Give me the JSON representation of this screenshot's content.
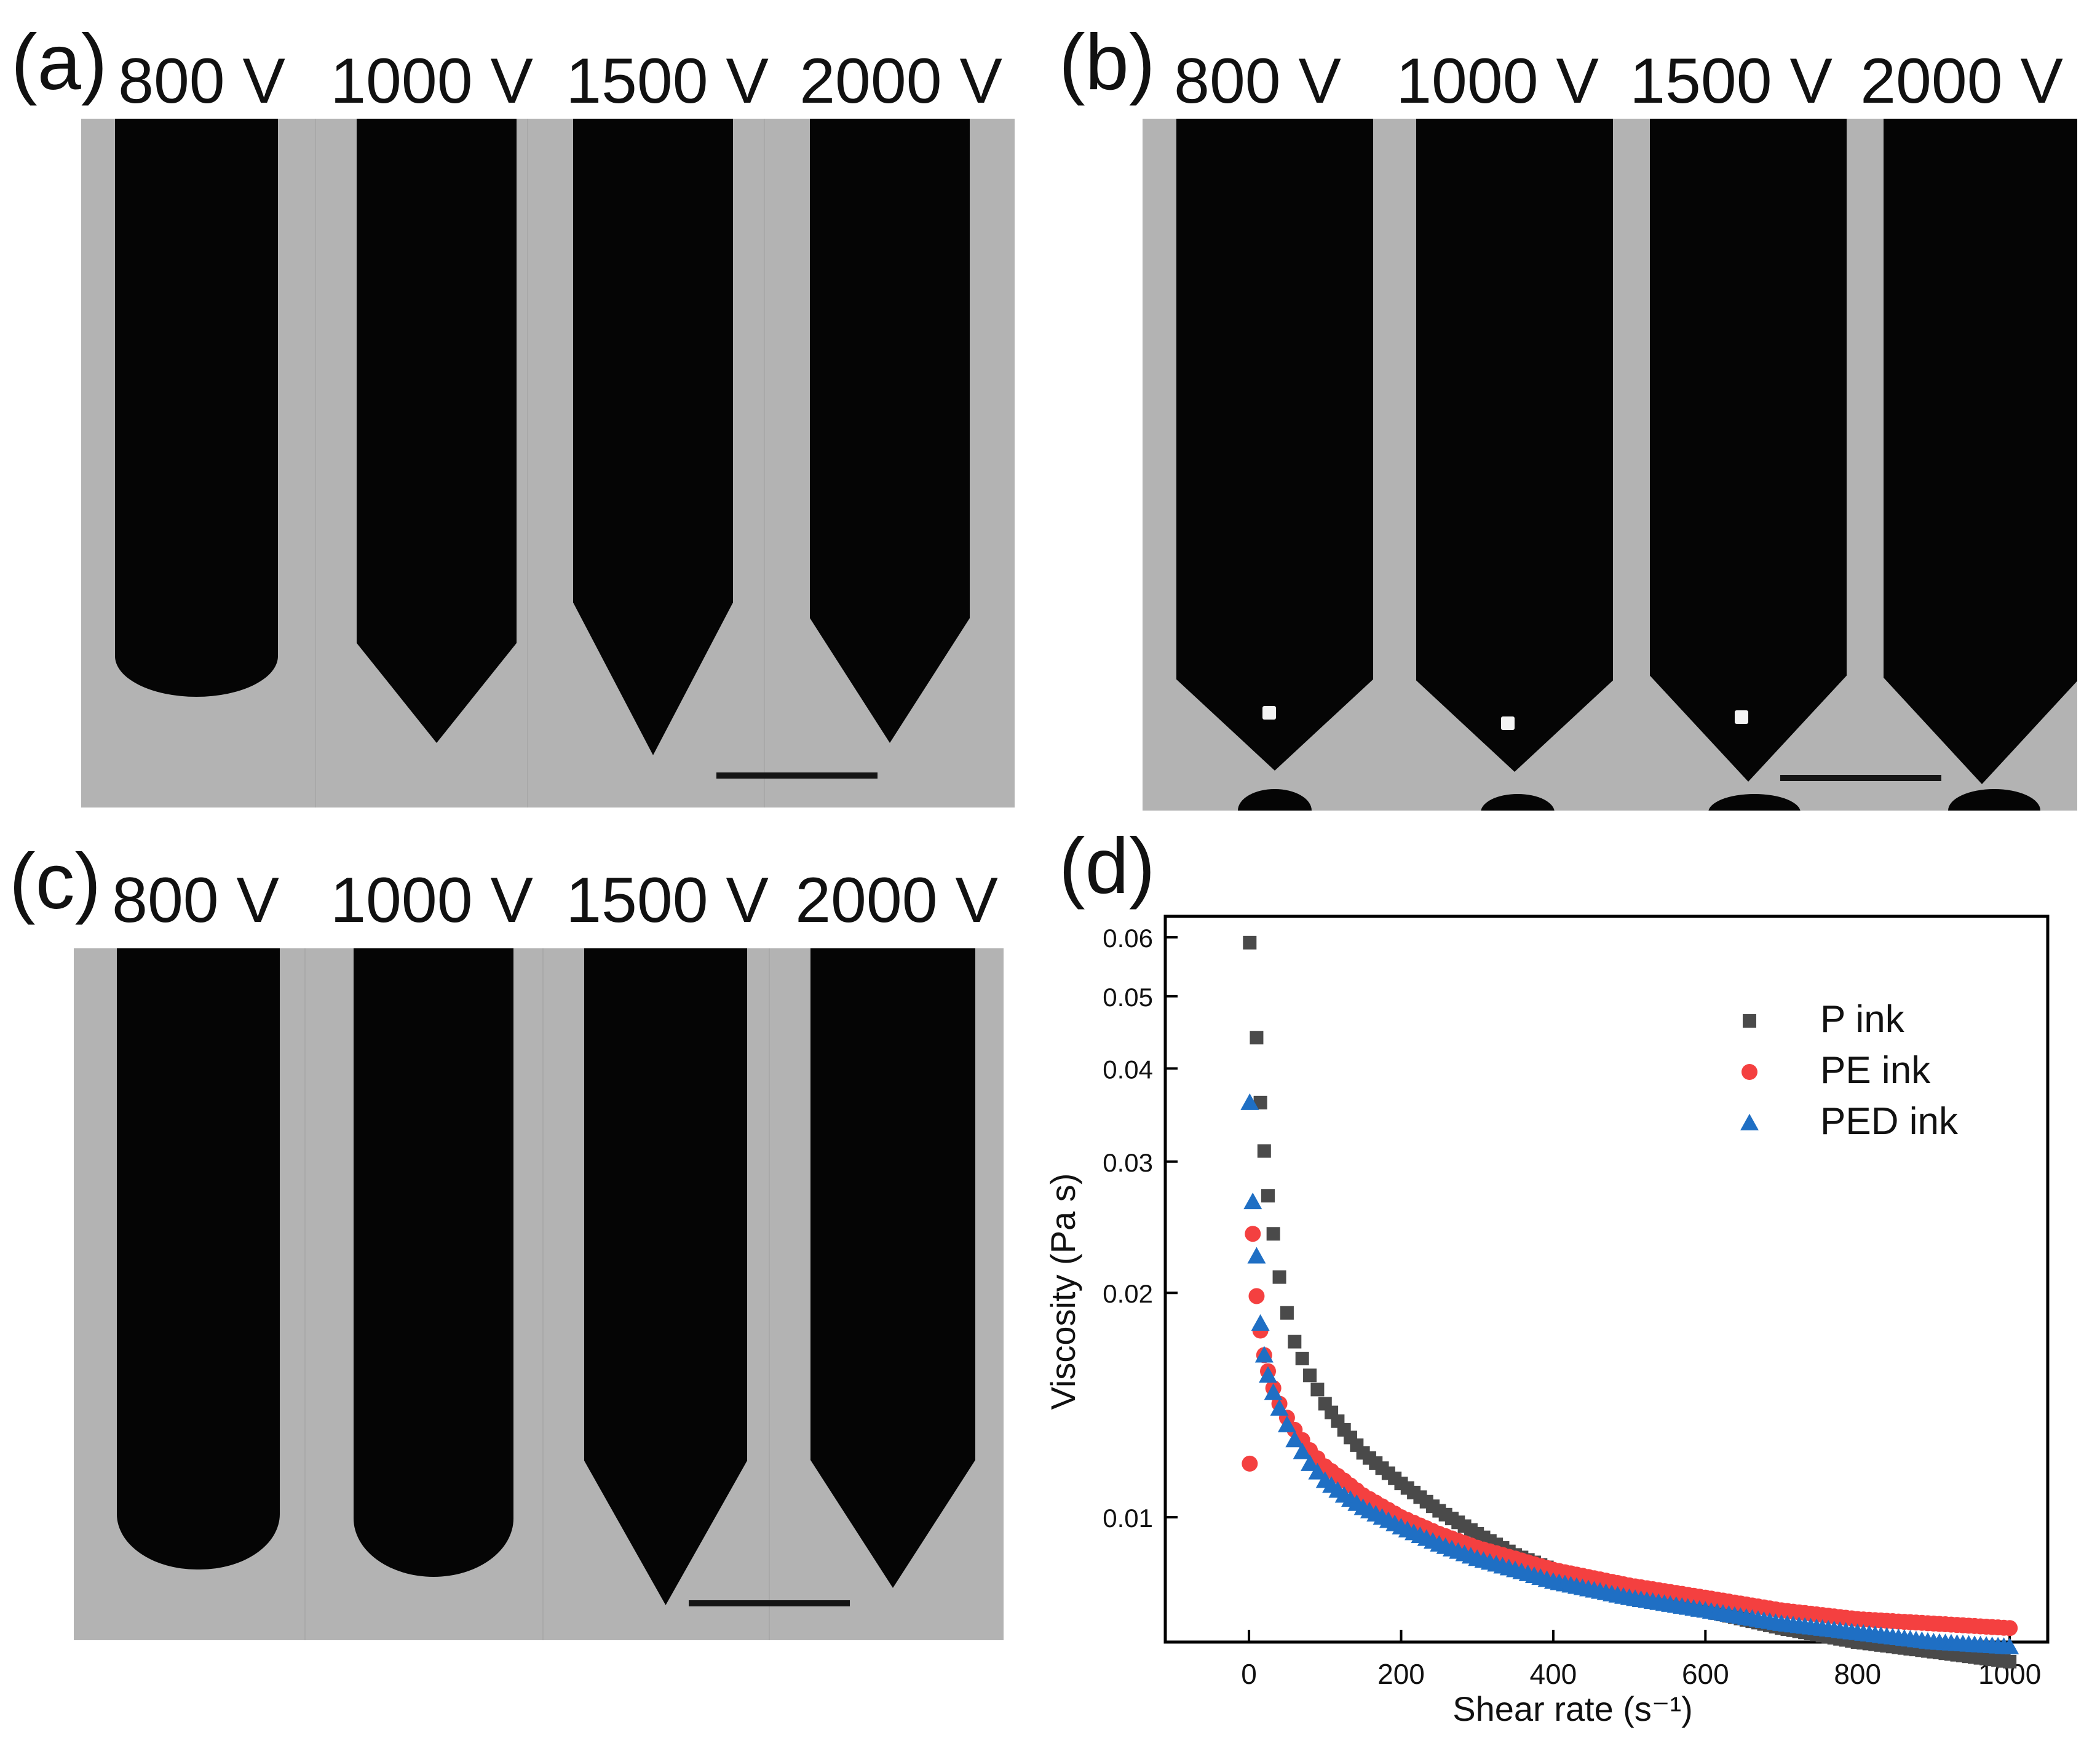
{
  "panels": {
    "a": {
      "label": "(a)",
      "voltages": [
        "800 V",
        "1000 V",
        "1500 V",
        "2000 V"
      ]
    },
    "b": {
      "label": "(b)",
      "voltages": [
        "800 V",
        "1000 V",
        "1500 V",
        "2000 V"
      ]
    },
    "c": {
      "label": "(c)",
      "voltages": [
        "800 V",
        "1000 V",
        "1500 V",
        "2000 V"
      ]
    },
    "d": {
      "label": "(d)"
    }
  },
  "chart_data": {
    "type": "scatter",
    "xlabel": "Shear rate (s⁻¹)",
    "ylabel": "Viscosity (Pa s)",
    "xlim": [
      -110,
      1050
    ],
    "ylim": [
      0.0068,
      0.064
    ],
    "yscale": "log",
    "xticks": [
      0,
      200,
      400,
      600,
      800,
      1000
    ],
    "xtick_labels": [
      "0",
      "200",
      "400",
      "600",
      "800",
      "1000"
    ],
    "yticks": [
      0.01,
      0.02,
      0.03,
      0.04,
      0.05,
      0.06
    ],
    "ytick_labels": [
      "0.01",
      "0.02",
      "0.03",
      "0.04",
      "0.05",
      "0.06"
    ],
    "legend_position": "top-right",
    "series": [
      {
        "name": "P ink",
        "marker": "square",
        "color": "#4a4a4a",
        "x": [
          1,
          10,
          15,
          20,
          25,
          32,
          40,
          50,
          60,
          80,
          100,
          125,
          150,
          200,
          250,
          300,
          350,
          400,
          500,
          600,
          700,
          800,
          900,
          1000
        ],
        "y": [
          0.059,
          0.044,
          0.036,
          0.031,
          0.027,
          0.024,
          0.021,
          0.0188,
          0.0172,
          0.0155,
          0.0142,
          0.0131,
          0.0122,
          0.0111,
          0.0102,
          0.0095,
          0.0089,
          0.0085,
          0.0079,
          0.0075,
          0.0071,
          0.0068,
          0.0066,
          0.0064
        ]
      },
      {
        "name": "PE ink",
        "marker": "circle",
        "color": "#f44040",
        "x": [
          1,
          5,
          10,
          15,
          20,
          25,
          32,
          40,
          50,
          60,
          80,
          100,
          125,
          150,
          200,
          250,
          300,
          350,
          400,
          500,
          600,
          700,
          800,
          900,
          1000
        ],
        "y": [
          0.0118,
          0.024,
          0.0198,
          0.0178,
          0.0165,
          0.0157,
          0.0149,
          0.0142,
          0.0136,
          0.0131,
          0.0123,
          0.0117,
          0.0112,
          0.0107,
          0.01,
          0.0095,
          0.0091,
          0.0088,
          0.0085,
          0.0081,
          0.0078,
          0.0075,
          0.0073,
          0.0072,
          0.0071
        ]
      },
      {
        "name": "PED ink",
        "marker": "triangle",
        "color": "#1f6fc4",
        "x": [
          1,
          5,
          10,
          15,
          20,
          25,
          32,
          40,
          50,
          60,
          80,
          100,
          125,
          150,
          200,
          250,
          300,
          350,
          400,
          500,
          600,
          700,
          800,
          900,
          1000
        ],
        "y": [
          0.036,
          0.0265,
          0.0224,
          0.0182,
          0.0165,
          0.0155,
          0.0147,
          0.014,
          0.0133,
          0.0127,
          0.0118,
          0.0112,
          0.0107,
          0.0103,
          0.0097,
          0.0092,
          0.0088,
          0.0085,
          0.0082,
          0.0078,
          0.0075,
          0.0072,
          0.007,
          0.0068,
          0.0067
        ]
      }
    ]
  }
}
